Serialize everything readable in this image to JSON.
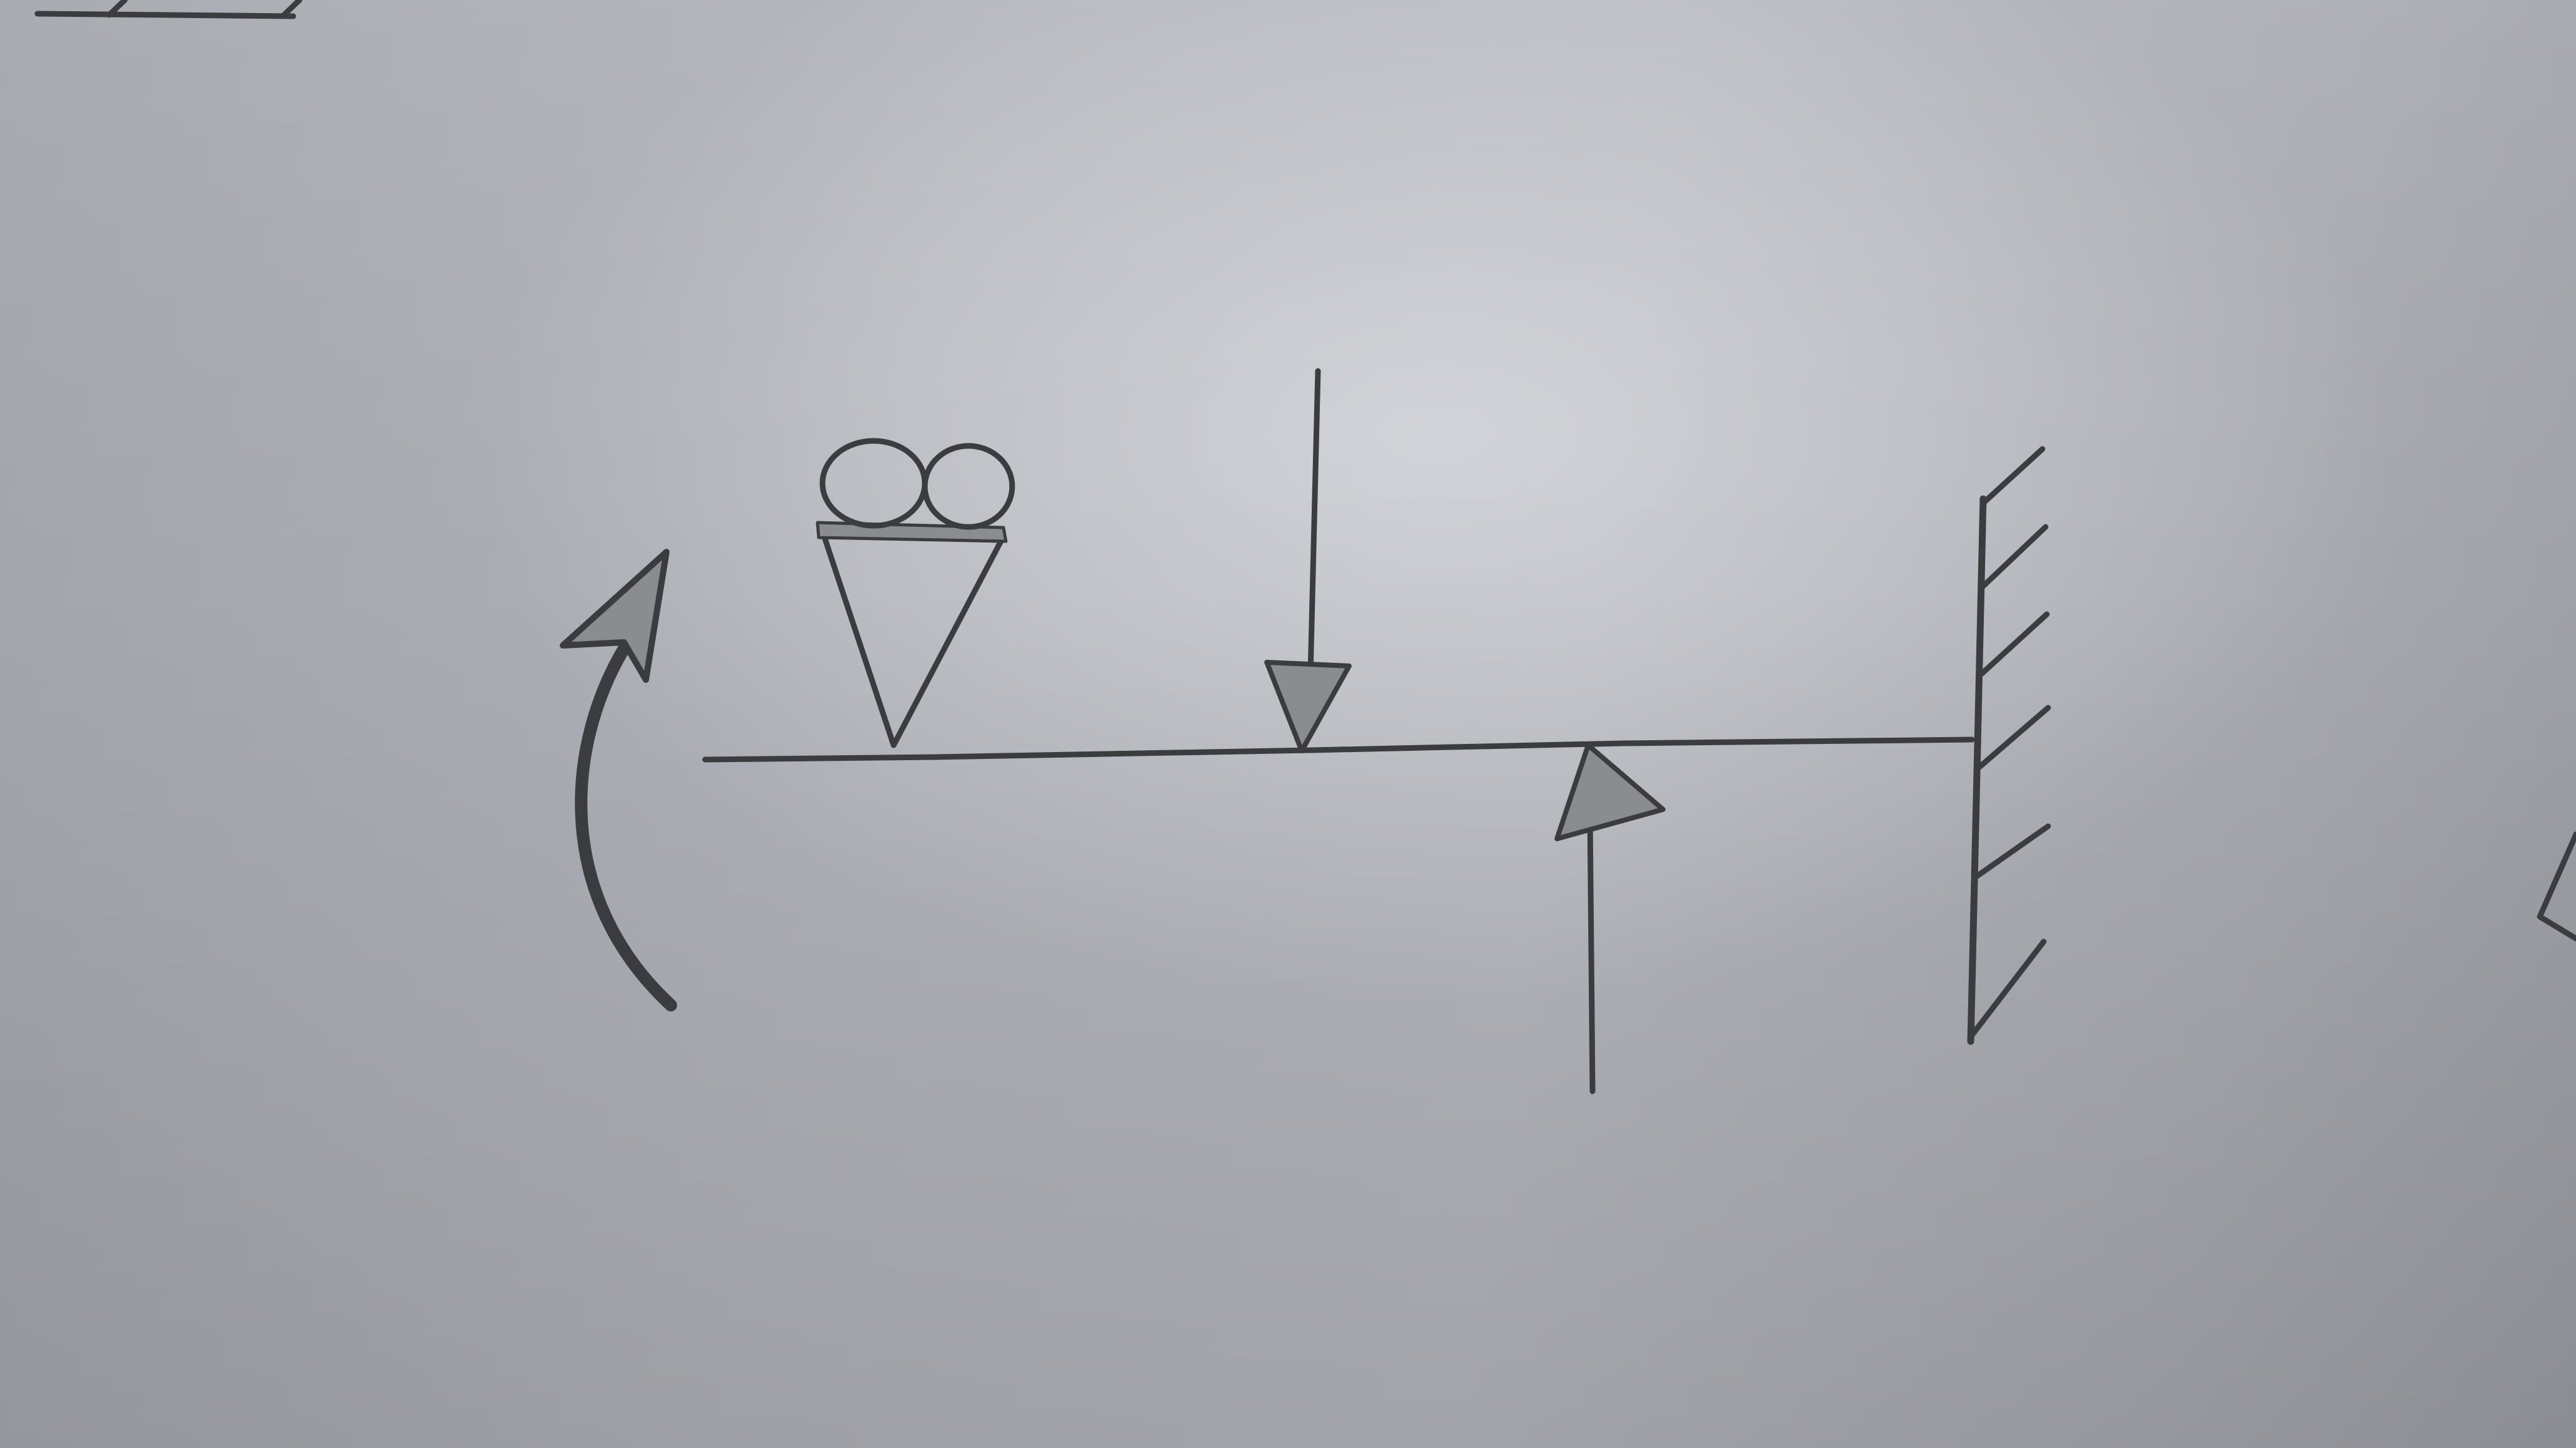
{
  "diagram": {
    "kind": "hand-drawn beam loading sketch",
    "ink_color": "#3a3c40",
    "highlight_color": "#8a8c90",
    "paper_color": "#b1b4ba",
    "elements": [
      "beam",
      "roller-support",
      "point-load-down",
      "point-load-up",
      "fixed-wall",
      "moment-arrow"
    ]
  }
}
